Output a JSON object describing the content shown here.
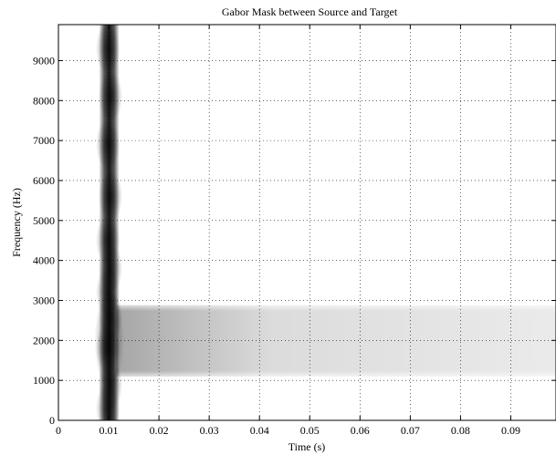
{
  "chart_data": {
    "type": "heatmap",
    "title": "Gabor Mask between Source and Target",
    "xlabel": "Time (s)",
    "ylabel": "Frequency (Hz)",
    "xlim": [
      0,
      0.099
    ],
    "ylim": [
      0,
      9900
    ],
    "xticks": [
      0,
      0.01,
      0.02,
      0.03,
      0.04,
      0.05,
      0.06,
      0.07,
      0.08,
      0.09
    ],
    "xtick_labels": [
      "0",
      "0.01",
      "0.02",
      "0.03",
      "0.04",
      "0.05",
      "0.06",
      "0.07",
      "0.08",
      "0.09"
    ],
    "yticks": [
      0,
      1000,
      2000,
      3000,
      4000,
      5000,
      6000,
      7000,
      8000,
      9000
    ],
    "ytick_labels": [
      "0",
      "1000",
      "2000",
      "3000",
      "4000",
      "5000",
      "6000",
      "7000",
      "8000",
      "9000"
    ],
    "grid": true,
    "colormap": "gray (white = low, black = high)",
    "regions": [
      {
        "kind": "vertical-band",
        "time_center": 0.0101,
        "half_width": 0.0015,
        "freq_range": [
          0,
          9900
        ],
        "intensity": 0.85
      },
      {
        "kind": "horizontal-band",
        "time_range": [
          0.0115,
          0.099
        ],
        "freq_range": [
          1100,
          2880
        ],
        "intensity_start": 0.35,
        "intensity_end": 0.08
      }
    ]
  }
}
